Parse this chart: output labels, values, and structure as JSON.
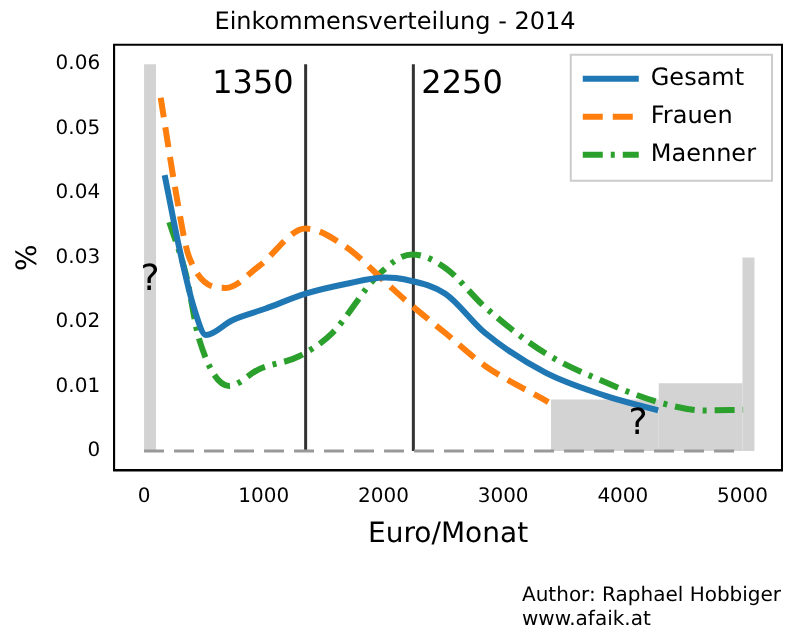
{
  "chart_data": {
    "type": "line",
    "title": "Einkommensverteilung - 2014",
    "xlabel": "Euro/Monat",
    "ylabel": "%",
    "xlim": [
      -250,
      5330
    ],
    "ylim": [
      -0.003,
      0.063
    ],
    "xticks": [
      0,
      1000,
      2000,
      3000,
      4000,
      5000
    ],
    "yticks": [
      0,
      0.01,
      0.02,
      0.03,
      0.04,
      0.05,
      0.06
    ],
    "grid": false,
    "legend": "top right",
    "marker": "none",
    "series": [
      {
        "type": "histogram",
        "color": "#d3d3d3",
        "bins": [
          0,
          100,
          3400,
          4300,
          5000,
          5100
        ],
        "values": [
          0.06,
          0,
          0.008,
          0.0105,
          0.03
        ]
      },
      {
        "name": "Gesamt",
        "color": "#1f77b4",
        "line_style": "solid",
        "x": [
          172,
          300,
          420,
          517,
          738,
          1017,
          1350,
          1683,
          2017,
          2183,
          2517,
          2850,
          3350,
          3850,
          4295
        ],
        "values": [
          0.0428,
          0.031,
          0.022,
          0.018,
          0.0203,
          0.0221,
          0.0244,
          0.0259,
          0.0269,
          0.0266,
          0.0244,
          0.0183,
          0.0122,
          0.0086,
          0.0063
        ]
      },
      {
        "name": "Frauen",
        "color": "#ff7f0e",
        "line_style": "dashed",
        "x": [
          139,
          267,
          378,
          683,
          961,
          1350,
          1683,
          2017,
          2183,
          2517,
          2850,
          3378
        ],
        "values": [
          0.0548,
          0.04,
          0.03,
          0.0253,
          0.0287,
          0.0345,
          0.0317,
          0.0262,
          0.0234,
          0.0183,
          0.0132,
          0.0076
        ]
      },
      {
        "name": "Maenner",
        "color": "#2ca02c",
        "line_style": "dashdot",
        "x": [
          211,
          350,
          461,
          711,
          961,
          1295,
          1572,
          1961,
          2239,
          2517,
          2850,
          3350,
          3850,
          4295,
          4683,
          5005
        ],
        "values": [
          0.0355,
          0.0274,
          0.0173,
          0.0101,
          0.0127,
          0.0147,
          0.0183,
          0.0274,
          0.0305,
          0.0284,
          0.0223,
          0.0152,
          0.0107,
          0.0076,
          0.0063,
          0.0064
        ]
      }
    ],
    "ref_lines": [
      {
        "axis": "x",
        "value": 1350,
        "label": "1350",
        "color": "#333333"
      },
      {
        "axis": "x",
        "value": 2250,
        "label": "2250",
        "color": "#333333"
      },
      {
        "axis": "y",
        "value": 0,
        "color": "#999999",
        "line_style": "dashed"
      }
    ],
    "annotations": [
      "?",
      "?",
      "Author: Raphael Hobbiger",
      "www.afaik.at"
    ]
  }
}
